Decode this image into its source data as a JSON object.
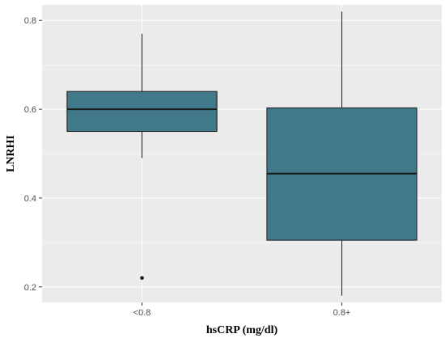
{
  "chart_data": {
    "type": "boxplot",
    "title": "",
    "xlabel": "hsCRP (mg/dl)",
    "ylabel": "LNRHI",
    "categories": [
      "<0.8",
      "0.8+"
    ],
    "boxes": [
      {
        "category": "<0.8",
        "whisker_low": 0.49,
        "q1": 0.55,
        "median": 0.6,
        "q3": 0.64,
        "whisker_high": 0.77,
        "outliers": [
          0.22
        ]
      },
      {
        "category": "0.8+",
        "whisker_low": 0.18,
        "q1": 0.305,
        "median": 0.455,
        "q3": 0.603,
        "whisker_high": 0.82,
        "outliers": []
      }
    ],
    "yticks": [
      0.2,
      0.4,
      0.6,
      0.8
    ],
    "ytick_labels": [
      "0.2",
      "0.4",
      "0.6",
      "0.8"
    ],
    "ylim": [
      0.165,
      0.835
    ],
    "grid": true,
    "colors": {
      "panel": "#ebebeb",
      "grid": "#ffffff",
      "box_fill": "#41788a",
      "box_line": "#1a1a1a",
      "tick_text": "#4d4d4d",
      "tick_mark": "#333333"
    }
  }
}
